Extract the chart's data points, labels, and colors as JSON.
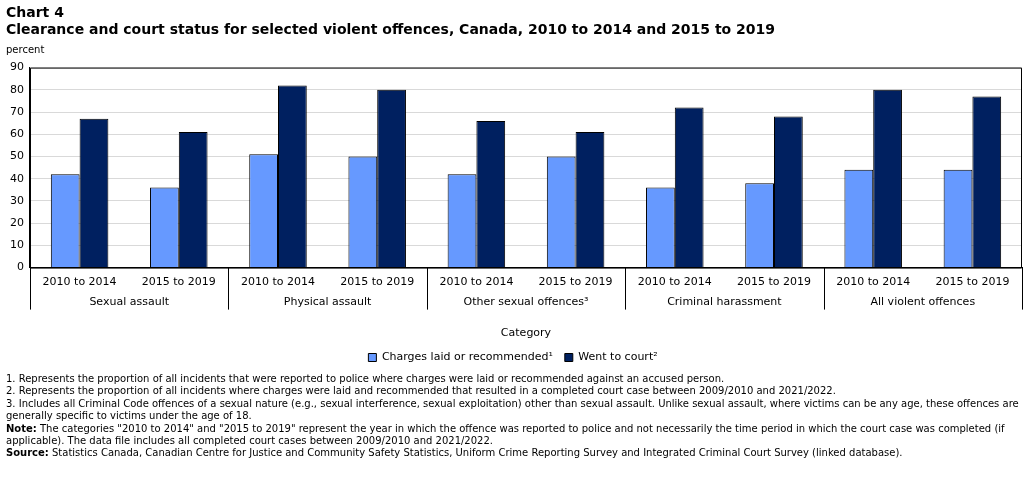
{
  "chart_data": {
    "type": "bar",
    "title": "Chart 4",
    "subtitle": "Clearance and court status for selected violent offences, Canada, 2010 to 2014 and 2015 to 2019",
    "ylabel": "percent",
    "xlabel": "Category",
    "categories": [
      "2010 to 2014",
      "2015 to 2019",
      "2010 to 2014",
      "2015 to 2019",
      "2010 to 2014",
      "2015 to 2019",
      "2010 to 2014",
      "2015 to 2019",
      "2010 to 2014",
      "2015 to 2019"
    ],
    "series": [
      {
        "name": "Charges laid or recommended¹",
        "color": "#6699ff",
        "values": [
          42,
          36,
          51,
          50,
          42,
          50,
          36,
          38,
          44,
          44
        ]
      },
      {
        "name": "Went to court²",
        "color": "#002060",
        "values": [
          67,
          61,
          82,
          80,
          66,
          61,
          72,
          68,
          80,
          77
        ]
      }
    ],
    "ylim": [
      0,
      90
    ],
    "yticks": [
      0,
      10,
      20,
      30,
      40,
      50,
      60,
      70,
      80,
      90
    ],
    "grid": "y",
    "legend": "bottom",
    "annotations": [
      "Sexual assault",
      "Physical assault",
      "Other sexual offences³",
      "Criminal harassment",
      "All violent offences",
      "1. Represents the proportion of all incidents that were reported to police where charges were laid or recommended against an accused person.",
      "2. Represents the proportion of all incidents where charges were laid and recommended that resulted in a completed court case between 2009/2010 and 2021/2022.",
      "3. Includes all Criminal Code offences of a sexual nature (e.g., sexual interference, sexual exploitation) other than sexual assault. Unlike sexual assault, where victims can be any age, these offences are generally specific to victims under the age of 18.",
      "Note: The categories \"2010 to 2014\" and \"2015 to 2019\" represent the year in which the offence was reported to police and not necessarily the time period in which the court case was completed (if applicable). The data file includes all completed court cases between 2009/2010 and 2021/2022.",
      "Source: Statistics Canada, Canadian Centre for Justice and Community Safety Statistics, Uniform Crime Reporting Survey and Integrated Criminal Court Survey (linked database)."
    ]
  }
}
